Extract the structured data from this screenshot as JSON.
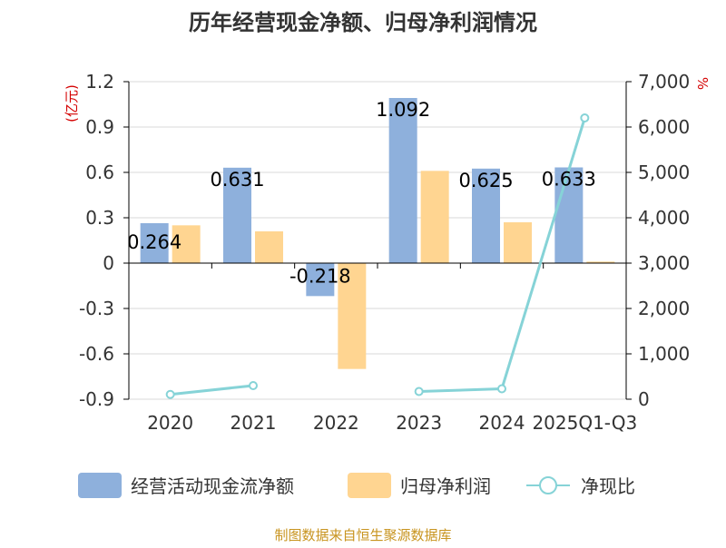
{
  "chart_data": {
    "type": "bar",
    "title": "历年经营现金净额、归母净利润情况",
    "categories": [
      "2020",
      "2021",
      "2022",
      "2023",
      "2024",
      "2025Q1-Q3"
    ],
    "left_axis": {
      "unit": "(亿元)",
      "range": [
        -0.9,
        1.2
      ],
      "ticks": [
        "1.2",
        "0.9",
        "0.6",
        "0.3",
        "0",
        "-0.3",
        "-0.6",
        "-0.9"
      ],
      "tick_values": [
        1.2,
        0.9,
        0.6,
        0.3,
        0,
        -0.3,
        -0.6,
        -0.9
      ]
    },
    "right_axis": {
      "unit": "%",
      "range": [
        0,
        7000
      ],
      "ticks": [
        "7,000",
        "6,000",
        "5,000",
        "4,000",
        "3,000",
        "2,000",
        "1,000",
        "0"
      ],
      "tick_values": [
        7000,
        6000,
        5000,
        4000,
        3000,
        2000,
        1000,
        0
      ]
    },
    "series": [
      {
        "name": "经营活动现金流净额",
        "kind": "bar",
        "axis": "left",
        "color": "#8eb0dc",
        "values": [
          0.264,
          0.631,
          -0.218,
          1.092,
          0.625,
          0.633
        ],
        "labels": [
          "0.264",
          "0.631",
          "-0.218",
          "1.092",
          "0.625",
          "0.633"
        ]
      },
      {
        "name": "归母净利润",
        "kind": "bar",
        "axis": "left",
        "color": "#ffd591",
        "values": [
          0.25,
          0.21,
          -0.7,
          0.61,
          0.27,
          0.01
        ]
      },
      {
        "name": "净现比",
        "kind": "line",
        "axis": "right",
        "color": "#86d3d7",
        "values": [
          105,
          300,
          null,
          170,
          230,
          6200
        ]
      }
    ],
    "legend": {
      "position": "bottom",
      "items": [
        "经营活动现金流净额",
        "归母净利润",
        "净现比"
      ]
    },
    "grid": true
  },
  "footer": {
    "source": "制图数据来自恒生聚源数据库"
  }
}
